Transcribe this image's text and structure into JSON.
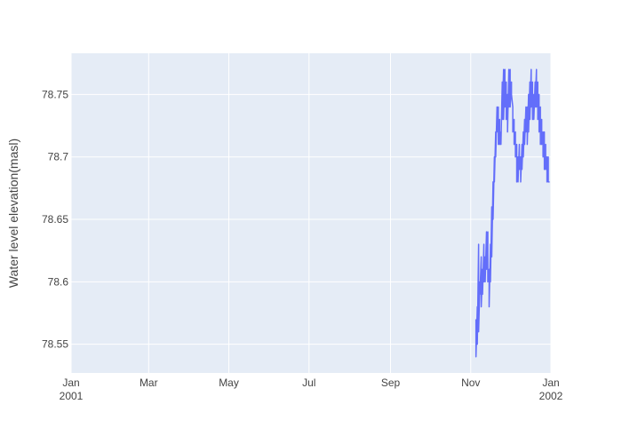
{
  "chart_data": {
    "type": "line",
    "title": "",
    "xlabel": "",
    "ylabel": "Water level elevation(masl)",
    "xlim": [
      "2001-01-01",
      "2002-01-01"
    ],
    "ylim": [
      78.527,
      78.783
    ],
    "grid": true,
    "legend": "none",
    "colors": {
      "line": "#636efa",
      "plot_bg": "#e5ecf6",
      "grid": "#ffffff",
      "text": "#444444"
    },
    "x_ticks": [
      {
        "value": "2001-01-01",
        "label": "Jan",
        "sublabel": "2001"
      },
      {
        "value": "2001-03-01",
        "label": "Mar",
        "sublabel": ""
      },
      {
        "value": "2001-05-01",
        "label": "May",
        "sublabel": ""
      },
      {
        "value": "2001-07-01",
        "label": "Jul",
        "sublabel": ""
      },
      {
        "value": "2001-09-01",
        "label": "Sep",
        "sublabel": ""
      },
      {
        "value": "2001-11-01",
        "label": "Nov",
        "sublabel": ""
      },
      {
        "value": "2002-01-01",
        "label": "Jan",
        "sublabel": "2002"
      }
    ],
    "y_ticks": [
      {
        "value": 78.55,
        "label": "78.55"
      },
      {
        "value": 78.6,
        "label": "78.6"
      },
      {
        "value": 78.65,
        "label": "78.65"
      },
      {
        "value": 78.7,
        "label": "78.7"
      },
      {
        "value": 78.75,
        "label": "78.75"
      }
    ],
    "series": [
      {
        "x": [
          "2001-11-05",
          "2001-11-05",
          "2001-11-06",
          "2001-11-06",
          "2001-11-07",
          "2001-11-07",
          "2001-11-08",
          "2001-11-08",
          "2001-11-09",
          "2001-11-09",
          "2001-11-10",
          "2001-11-10",
          "2001-11-11",
          "2001-11-11",
          "2001-11-12",
          "2001-11-12",
          "2001-11-13",
          "2001-11-13",
          "2001-11-14",
          "2001-11-14",
          "2001-11-15",
          "2001-11-15",
          "2001-11-16",
          "2001-11-16",
          "2001-11-17",
          "2001-11-17",
          "2001-11-18",
          "2001-11-18",
          "2001-11-19",
          "2001-11-19",
          "2001-11-20",
          "2001-11-20",
          "2001-11-21",
          "2001-11-21",
          "2001-11-22",
          "2001-11-22",
          "2001-11-23",
          "2001-11-23",
          "2001-11-24",
          "2001-11-24",
          "2001-11-25",
          "2001-11-25",
          "2001-11-26",
          "2001-11-26",
          "2001-11-27",
          "2001-11-27",
          "2001-11-28",
          "2001-11-28",
          "2001-11-29",
          "2001-11-29",
          "2001-11-30",
          "2001-11-30",
          "2001-12-01",
          "2001-12-01",
          "2001-12-02",
          "2001-12-02",
          "2001-12-03",
          "2001-12-03",
          "2001-12-04",
          "2001-12-04",
          "2001-12-05",
          "2001-12-05",
          "2001-12-06",
          "2001-12-06",
          "2001-12-07",
          "2001-12-07",
          "2001-12-08",
          "2001-12-08",
          "2001-12-09",
          "2001-12-09",
          "2001-12-10",
          "2001-12-10",
          "2001-12-11",
          "2001-12-11",
          "2001-12-12",
          "2001-12-12",
          "2001-12-13",
          "2001-12-13",
          "2001-12-14",
          "2001-12-14",
          "2001-12-15",
          "2001-12-15",
          "2001-12-16",
          "2001-12-16",
          "2001-12-17",
          "2001-12-17",
          "2001-12-18",
          "2001-12-18",
          "2001-12-19",
          "2001-12-19",
          "2001-12-20",
          "2001-12-20",
          "2001-12-21",
          "2001-12-21",
          "2001-12-22",
          "2001-12-22",
          "2001-12-23",
          "2001-12-23",
          "2001-12-24",
          "2001-12-24",
          "2001-12-25",
          "2001-12-25",
          "2001-12-26",
          "2001-12-26",
          "2001-12-27",
          "2001-12-27",
          "2001-12-28",
          "2001-12-28",
          "2001-12-29",
          "2001-12-29",
          "2001-12-30",
          "2001-12-30",
          "2001-12-31"
        ],
        "y": [
          78.57,
          78.54,
          78.58,
          78.55,
          78.63,
          78.56,
          78.6,
          78.59,
          78.62,
          78.58,
          78.61,
          78.59,
          78.63,
          78.6,
          78.62,
          78.6,
          78.64,
          78.61,
          78.64,
          78.6,
          78.61,
          78.58,
          78.63,
          78.6,
          78.66,
          78.62,
          78.68,
          78.65,
          78.7,
          78.68,
          78.72,
          78.7,
          78.74,
          78.72,
          78.74,
          78.71,
          78.73,
          78.71,
          78.72,
          78.71,
          78.76,
          78.73,
          78.77,
          78.73,
          78.77,
          78.74,
          78.76,
          78.73,
          78.75,
          78.72,
          78.77,
          78.74,
          78.77,
          78.74,
          78.76,
          78.75,
          78.74,
          78.72,
          78.73,
          78.71,
          78.72,
          78.7,
          78.71,
          78.68,
          78.7,
          78.68,
          78.71,
          78.69,
          78.7,
          78.68,
          78.71,
          78.69,
          78.72,
          78.7,
          78.73,
          78.71,
          78.74,
          78.72,
          78.74,
          78.71,
          78.75,
          78.72,
          78.76,
          78.73,
          78.77,
          78.74,
          78.76,
          78.73,
          78.75,
          78.73,
          78.76,
          78.74,
          78.77,
          78.74,
          78.76,
          78.73,
          78.75,
          78.72,
          78.74,
          78.71,
          78.73,
          78.71,
          78.72,
          78.7,
          78.72,
          78.69,
          78.71,
          78.69,
          78.7,
          78.68,
          78.7,
          78.68,
          78.68
        ]
      }
    ]
  }
}
